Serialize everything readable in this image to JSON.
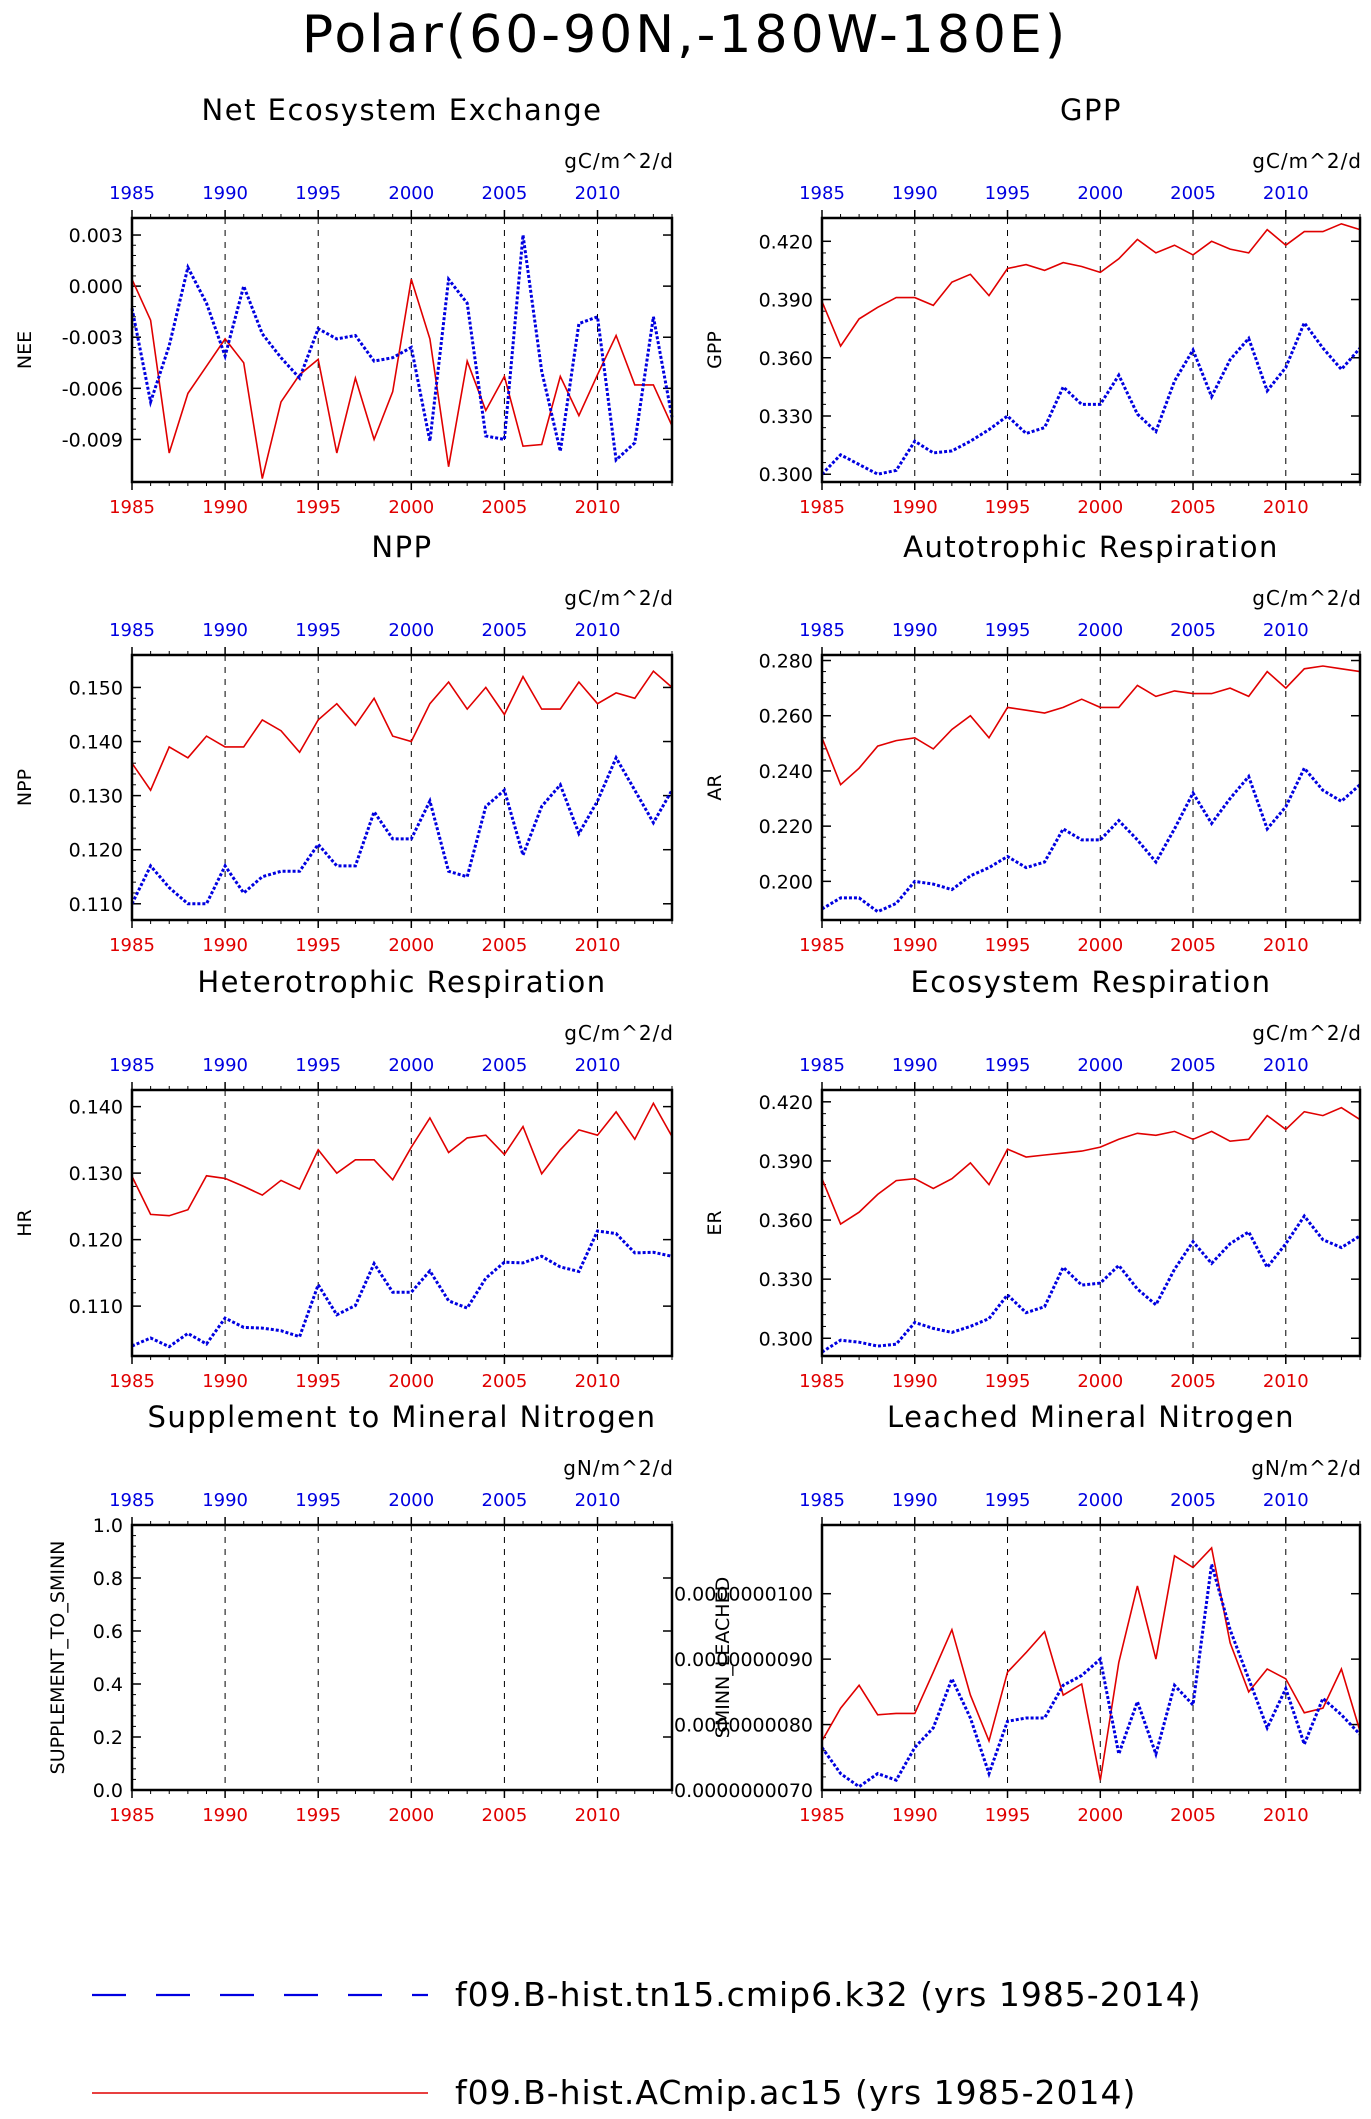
{
  "title": "Polar(60-90N,-180W-180E)",
  "colors": {
    "red_series": "#e00000",
    "blue_series": "#0000e0",
    "axes": "#000000"
  },
  "legend": [
    {
      "label": "f09.B-hist.tn15.cmip6.k32 (yrs 1985-2014)",
      "color": "#0000e0",
      "style": "dashed"
    },
    {
      "label": "f09.B-hist.ACmip.ac15 (yrs 1985-2014)",
      "color": "#e00000",
      "style": "solid"
    }
  ],
  "chart_data": [
    {
      "type": "line",
      "title": "Net Ecosystem Exchange",
      "units": "gC/m^2/d",
      "ylabel": "NEE",
      "x": [
        1985,
        1986,
        1987,
        1988,
        1989,
        1990,
        1991,
        1992,
        1993,
        1994,
        1995,
        1996,
        1997,
        1998,
        1999,
        2000,
        2001,
        2002,
        2003,
        2004,
        2005,
        2006,
        2007,
        2008,
        2009,
        2010,
        2011,
        2012,
        2013,
        2014
      ],
      "x_ticks": [
        1985,
        1990,
        1995,
        2000,
        2005,
        2010
      ],
      "x_tick_labels": [
        "1985",
        "1990",
        "1995",
        "2000",
        "2005",
        "2010"
      ],
      "ylim": [
        -0.0115,
        0.004
      ],
      "y_ticks": [
        -0.009,
        -0.006,
        -0.003,
        0.0,
        0.003
      ],
      "y_tick_labels": [
        "-0.009",
        "-0.006",
        "-0.003",
        "0.000",
        "0.003"
      ],
      "series": [
        {
          "color": "#e00000",
          "style": "solid",
          "values": [
            0.0004,
            -0.002,
            -0.0098,
            -0.0063,
            -0.0047,
            -0.0031,
            -0.0045,
            -0.0113,
            -0.0068,
            -0.0052,
            -0.0043,
            -0.0098,
            -0.0054,
            -0.009,
            -0.0062,
            0.0004,
            -0.0031,
            -0.0106,
            -0.0044,
            -0.0073,
            -0.0053,
            -0.0094,
            -0.0093,
            -0.0053,
            -0.0076,
            -0.0052,
            -0.0029,
            -0.0058,
            -0.0058,
            -0.0082
          ]
        },
        {
          "color": "#0000e0",
          "style": "dashed",
          "values": [
            -0.0013,
            -0.0068,
            -0.0035,
            0.0011,
            -0.001,
            -0.0041,
            0.0,
            -0.0028,
            -0.0042,
            -0.0054,
            -0.0025,
            -0.0031,
            -0.0029,
            -0.0044,
            -0.0042,
            -0.0036,
            -0.0091,
            0.0004,
            -0.001,
            -0.0088,
            -0.009,
            0.003,
            -0.005,
            -0.0097,
            -0.0022,
            -0.0018,
            -0.0102,
            -0.0092,
            -0.0018,
            -0.0077
          ]
        }
      ]
    },
    {
      "type": "line",
      "title": "GPP",
      "units": "gC/m^2/d",
      "ylabel": "GPP",
      "x": [
        1985,
        1986,
        1987,
        1988,
        1989,
        1990,
        1991,
        1992,
        1993,
        1994,
        1995,
        1996,
        1997,
        1998,
        1999,
        2000,
        2001,
        2002,
        2003,
        2004,
        2005,
        2006,
        2007,
        2008,
        2009,
        2010,
        2011,
        2012,
        2013,
        2014
      ],
      "x_ticks": [
        1985,
        1990,
        1995,
        2000,
        2005,
        2010
      ],
      "x_tick_labels": [
        "1985",
        "1990",
        "1995",
        "2000",
        "2005",
        "2010"
      ],
      "ylim": [
        0.296,
        0.432
      ],
      "y_ticks": [
        0.3,
        0.33,
        0.36,
        0.39,
        0.42
      ],
      "y_tick_labels": [
        "0.300",
        "0.330",
        "0.360",
        "0.390",
        "0.420"
      ],
      "series": [
        {
          "color": "#e00000",
          "style": "solid",
          "values": [
            0.389,
            0.366,
            0.38,
            0.386,
            0.391,
            0.391,
            0.387,
            0.399,
            0.403,
            0.392,
            0.406,
            0.408,
            0.405,
            0.409,
            0.407,
            0.404,
            0.411,
            0.421,
            0.414,
            0.418,
            0.413,
            0.42,
            0.416,
            0.414,
            0.426,
            0.418,
            0.425,
            0.425,
            0.429,
            0.426
          ]
        },
        {
          "color": "#0000e0",
          "style": "dashed",
          "values": [
            0.3,
            0.31,
            0.305,
            0.3,
            0.302,
            0.317,
            0.311,
            0.312,
            0.317,
            0.323,
            0.33,
            0.321,
            0.324,
            0.345,
            0.336,
            0.336,
            0.351,
            0.331,
            0.322,
            0.348,
            0.364,
            0.34,
            0.359,
            0.37,
            0.343,
            0.355,
            0.378,
            0.365,
            0.354,
            0.365
          ]
        }
      ]
    },
    {
      "type": "line",
      "title": "NPP",
      "units": "gC/m^2/d",
      "ylabel": "NPP",
      "x": [
        1985,
        1986,
        1987,
        1988,
        1989,
        1990,
        1991,
        1992,
        1993,
        1994,
        1995,
        1996,
        1997,
        1998,
        1999,
        2000,
        2001,
        2002,
        2003,
        2004,
        2005,
        2006,
        2007,
        2008,
        2009,
        2010,
        2011,
        2012,
        2013,
        2014
      ],
      "x_ticks": [
        1985,
        1990,
        1995,
        2000,
        2005,
        2010
      ],
      "x_tick_labels": [
        "1985",
        "1990",
        "1995",
        "2000",
        "2005",
        "2010"
      ],
      "ylim": [
        0.107,
        0.156
      ],
      "y_ticks": [
        0.11,
        0.12,
        0.13,
        0.14,
        0.15
      ],
      "y_tick_labels": [
        "0.110",
        "0.120",
        "0.130",
        "0.140",
        "0.150"
      ],
      "series": [
        {
          "color": "#e00000",
          "style": "solid",
          "values": [
            0.136,
            0.131,
            0.139,
            0.137,
            0.141,
            0.139,
            0.139,
            0.144,
            0.142,
            0.138,
            0.144,
            0.147,
            0.143,
            0.148,
            0.141,
            0.14,
            0.147,
            0.151,
            0.146,
            0.15,
            0.145,
            0.152,
            0.146,
            0.146,
            0.151,
            0.147,
            0.149,
            0.148,
            0.153,
            0.15
          ]
        },
        {
          "color": "#0000e0",
          "style": "dashed",
          "values": [
            0.11,
            0.117,
            0.113,
            0.11,
            0.11,
            0.117,
            0.112,
            0.115,
            0.116,
            0.116,
            0.121,
            0.117,
            0.117,
            0.127,
            0.122,
            0.122,
            0.129,
            0.116,
            0.115,
            0.128,
            0.131,
            0.119,
            0.128,
            0.132,
            0.123,
            0.129,
            0.137,
            0.131,
            0.125,
            0.131
          ]
        }
      ]
    },
    {
      "type": "line",
      "title": "Autotrophic Respiration",
      "units": "gC/m^2/d",
      "ylabel": "AR",
      "x": [
        1985,
        1986,
        1987,
        1988,
        1989,
        1990,
        1991,
        1992,
        1993,
        1994,
        1995,
        1996,
        1997,
        1998,
        1999,
        2000,
        2001,
        2002,
        2003,
        2004,
        2005,
        2006,
        2007,
        2008,
        2009,
        2010,
        2011,
        2012,
        2013,
        2014
      ],
      "x_ticks": [
        1985,
        1990,
        1995,
        2000,
        2005,
        2010
      ],
      "x_tick_labels": [
        "1985",
        "1990",
        "1995",
        "2000",
        "2005",
        "2010"
      ],
      "ylim": [
        0.186,
        0.282
      ],
      "y_ticks": [
        0.2,
        0.22,
        0.24,
        0.26,
        0.28
      ],
      "y_tick_labels": [
        "0.200",
        "0.220",
        "0.240",
        "0.260",
        "0.280"
      ],
      "series": [
        {
          "color": "#e00000",
          "style": "solid",
          "values": [
            0.252,
            0.235,
            0.241,
            0.249,
            0.251,
            0.252,
            0.248,
            0.255,
            0.26,
            0.252,
            0.263,
            0.262,
            0.261,
            0.263,
            0.266,
            0.263,
            0.263,
            0.271,
            0.267,
            0.269,
            0.268,
            0.268,
            0.27,
            0.267,
            0.276,
            0.27,
            0.277,
            0.278,
            0.277,
            0.276
          ]
        },
        {
          "color": "#0000e0",
          "style": "dashed",
          "values": [
            0.19,
            0.194,
            0.194,
            0.189,
            0.192,
            0.2,
            0.199,
            0.197,
            0.202,
            0.205,
            0.209,
            0.205,
            0.207,
            0.219,
            0.215,
            0.215,
            0.222,
            0.215,
            0.207,
            0.219,
            0.232,
            0.221,
            0.23,
            0.238,
            0.219,
            0.227,
            0.241,
            0.233,
            0.229,
            0.235
          ]
        }
      ]
    },
    {
      "type": "line",
      "title": "Heterotrophic Respiration",
      "units": "gC/m^2/d",
      "ylabel": "HR",
      "x": [
        1985,
        1986,
        1987,
        1988,
        1989,
        1990,
        1991,
        1992,
        1993,
        1994,
        1995,
        1996,
        1997,
        1998,
        1999,
        2000,
        2001,
        2002,
        2003,
        2004,
        2005,
        2006,
        2007,
        2008,
        2009,
        2010,
        2011,
        2012,
        2013,
        2014
      ],
      "x_ticks": [
        1985,
        1990,
        1995,
        2000,
        2005,
        2010
      ],
      "x_tick_labels": [
        "1985",
        "1990",
        "1995",
        "2000",
        "2005",
        "2010"
      ],
      "ylim": [
        0.1025,
        0.1425
      ],
      "y_ticks": [
        0.11,
        0.12,
        0.13,
        0.14
      ],
      "y_tick_labels": [
        "0.110",
        "0.120",
        "0.130",
        "0.140"
      ],
      "series": [
        {
          "color": "#e00000",
          "style": "solid",
          "values": [
            0.1295,
            0.1238,
            0.1236,
            0.1245,
            0.1296,
            0.1292,
            0.128,
            0.1267,
            0.1289,
            0.1276,
            0.1335,
            0.13,
            0.132,
            0.132,
            0.129,
            0.1339,
            0.1383,
            0.1331,
            0.1353,
            0.1357,
            0.1328,
            0.137,
            0.1299,
            0.1335,
            0.1365,
            0.1357,
            0.1392,
            0.1351,
            0.1405,
            0.1355
          ]
        },
        {
          "color": "#0000e0",
          "style": "dashed",
          "values": [
            0.104,
            0.1052,
            0.1039,
            0.1059,
            0.1043,
            0.1082,
            0.1068,
            0.1067,
            0.1063,
            0.1054,
            0.1132,
            0.1087,
            0.1101,
            0.1164,
            0.1121,
            0.1121,
            0.1153,
            0.1108,
            0.1097,
            0.1142,
            0.1166,
            0.1165,
            0.1175,
            0.1159,
            0.1152,
            0.1213,
            0.1209,
            0.118,
            0.1181,
            0.1175
          ]
        }
      ]
    },
    {
      "type": "line",
      "title": "Ecosystem Respiration",
      "units": "gC/m^2/d",
      "ylabel": "ER",
      "x": [
        1985,
        1986,
        1987,
        1988,
        1989,
        1990,
        1991,
        1992,
        1993,
        1994,
        1995,
        1996,
        1997,
        1998,
        1999,
        2000,
        2001,
        2002,
        2003,
        2004,
        2005,
        2006,
        2007,
        2008,
        2009,
        2010,
        2011,
        2012,
        2013,
        2014
      ],
      "x_ticks": [
        1985,
        1990,
        1995,
        2000,
        2005,
        2010
      ],
      "x_tick_labels": [
        "1985",
        "1990",
        "1995",
        "2000",
        "2005",
        "2010"
      ],
      "ylim": [
        0.291,
        0.426
      ],
      "y_ticks": [
        0.3,
        0.33,
        0.36,
        0.39,
        0.42
      ],
      "y_tick_labels": [
        "0.300",
        "0.330",
        "0.360",
        "0.390",
        "0.420"
      ],
      "series": [
        {
          "color": "#e00000",
          "style": "solid",
          "values": [
            0.381,
            0.358,
            0.364,
            0.373,
            0.38,
            0.381,
            0.376,
            0.381,
            0.389,
            0.378,
            0.396,
            0.392,
            0.393,
            0.394,
            0.395,
            0.397,
            0.401,
            0.404,
            0.403,
            0.405,
            0.401,
            0.405,
            0.4,
            0.401,
            0.413,
            0.406,
            0.415,
            0.413,
            0.417,
            0.411
          ]
        },
        {
          "color": "#0000e0",
          "style": "dashed",
          "values": [
            0.293,
            0.299,
            0.298,
            0.296,
            0.297,
            0.308,
            0.305,
            0.303,
            0.306,
            0.31,
            0.322,
            0.313,
            0.316,
            0.336,
            0.327,
            0.328,
            0.337,
            0.325,
            0.317,
            0.335,
            0.349,
            0.338,
            0.348,
            0.354,
            0.336,
            0.348,
            0.362,
            0.35,
            0.346,
            0.352
          ]
        }
      ]
    },
    {
      "type": "line",
      "title": "Supplement to Mineral Nitrogen",
      "units": "gN/m^2/d",
      "ylabel": "SUPPLEMENT_TO_SMINN",
      "x": [
        1985,
        1986,
        1987,
        1988,
        1989,
        1990,
        1991,
        1992,
        1993,
        1994,
        1995,
        1996,
        1997,
        1998,
        1999,
        2000,
        2001,
        2002,
        2003,
        2004,
        2005,
        2006,
        2007,
        2008,
        2009,
        2010,
        2011,
        2012,
        2013,
        2014
      ],
      "x_ticks": [
        1985,
        1990,
        1995,
        2000,
        2005,
        2010
      ],
      "x_tick_labels": [
        "1985",
        "1990",
        "1995",
        "2000",
        "2005",
        "2010"
      ],
      "ylim": [
        0.0,
        1.0
      ],
      "y_ticks": [
        0.0,
        0.2,
        0.4,
        0.6,
        0.8,
        1.0
      ],
      "y_tick_labels": [
        "0.0",
        "0.2",
        "0.4",
        "0.6",
        "0.8",
        "1.0"
      ],
      "series": []
    },
    {
      "type": "line",
      "title": "Leached Mineral Nitrogen",
      "units": "gN/m^2/d",
      "ylabel": "SMINN_LEACHED",
      "x": [
        1985,
        1986,
        1987,
        1988,
        1989,
        1990,
        1991,
        1992,
        1993,
        1994,
        1995,
        1996,
        1997,
        1998,
        1999,
        2000,
        2001,
        2002,
        2003,
        2004,
        2005,
        2006,
        2007,
        2008,
        2009,
        2010,
        2011,
        2012,
        2013,
        2014
      ],
      "x_ticks": [
        1985,
        1990,
        1995,
        2000,
        2005,
        2010
      ],
      "x_tick_labels": [
        "1985",
        "1990",
        "1995",
        "2000",
        "2005",
        "2010"
      ],
      "ylim": [
        7e-09,
        1.105e-08
      ],
      "y_ticks": [
        7e-09,
        8e-09,
        9e-09,
        1e-08
      ],
      "y_tick_labels": [
        "0.0000000070",
        "0.0000000080",
        "0.0000000090",
        "0.0000000100"
      ],
      "series": [
        {
          "color": "#e00000",
          "style": "solid",
          "values": [
            7.75e-09,
            8.25e-09,
            8.6e-09,
            8.15e-09,
            8.17e-09,
            8.17e-09,
            8.8e-09,
            9.45e-09,
            8.45e-09,
            7.75e-09,
            8.8e-09,
            9.1e-09,
            9.42e-09,
            8.45e-09,
            8.62e-09,
            7.15e-09,
            8.95e-09,
            1.012e-08,
            9e-09,
            1.058e-08,
            1.04e-08,
            1.07e-08,
            9.25e-09,
            8.5e-09,
            8.85e-09,
            8.7e-09,
            8.18e-09,
            8.25e-09,
            8.85e-09,
            7.9e-09
          ]
        },
        {
          "color": "#0000e0",
          "style": "dashed",
          "values": [
            7.65e-09,
            7.25e-09,
            7.05e-09,
            7.25e-09,
            7.15e-09,
            7.65e-09,
            7.95e-09,
            8.7e-09,
            8.1e-09,
            7.25e-09,
            8.05e-09,
            8.1e-09,
            8.1e-09,
            8.6e-09,
            8.75e-09,
            9e-09,
            7.55e-09,
            8.35e-09,
            7.55e-09,
            8.6e-09,
            8.3e-09,
            1.045e-08,
            9.45e-09,
            8.7e-09,
            7.95e-09,
            8.55e-09,
            7.7e-09,
            8.4e-09,
            8.15e-09,
            7.85e-09
          ]
        }
      ]
    }
  ]
}
